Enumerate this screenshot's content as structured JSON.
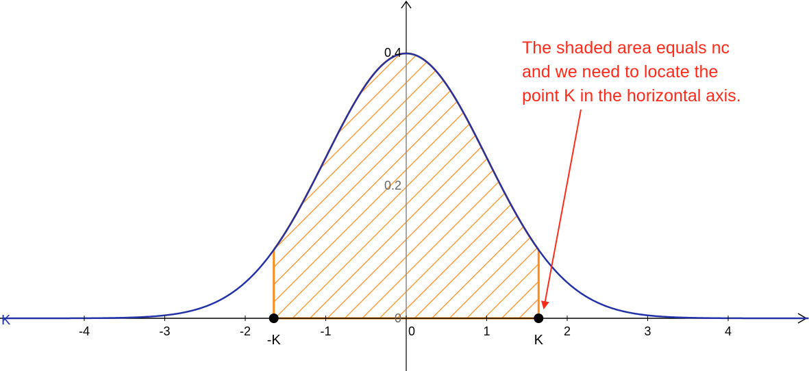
{
  "chart_data": {
    "type": "area",
    "function": "standard normal density",
    "xlim": [
      -5,
      5
    ],
    "ylim": [
      0,
      0.45
    ],
    "x_ticks": [
      "-4",
      "-3",
      "-2",
      "-1",
      "0",
      "1",
      "2",
      "3",
      "4"
    ],
    "y_ticks": [
      "0",
      "0.2",
      "0.4"
    ],
    "x_tick_values": [
      -4,
      -3,
      -2,
      -1,
      0,
      1,
      2,
      3,
      4
    ],
    "y_tick_values": [
      0,
      0.2,
      0.4
    ],
    "shaded_region": {
      "from": -1.645,
      "to": 1.645
    },
    "points": [
      {
        "label": "-K",
        "x": -1.645,
        "y": 0
      },
      {
        "label": "K",
        "x": 1.645,
        "y": 0
      }
    ],
    "left_edge_label": "K",
    "annotation": {
      "lines": [
        "The shaded area equals nc",
        "and we need to locate the",
        "point K in the horizontal axis."
      ],
      "points_to": "K"
    },
    "grid": false
  },
  "colors": {
    "curve": "#2233aa",
    "shade": "#ff8c1a",
    "annotation": "#ff2a1a",
    "axis": "#000000"
  }
}
